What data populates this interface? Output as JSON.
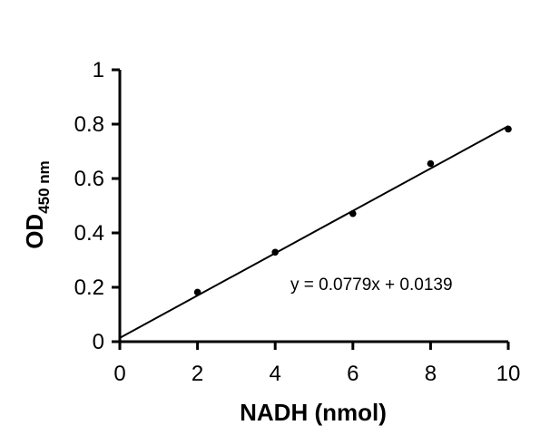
{
  "chart_data": {
    "type": "scatter",
    "x": [
      2,
      4,
      6,
      8,
      10
    ],
    "y": [
      0.182,
      0.329,
      0.471,
      0.655,
      0.782
    ],
    "xlim": [
      0,
      10
    ],
    "ylim": [
      0,
      1
    ],
    "xticks": [
      "0",
      "2",
      "4",
      "6",
      "8",
      "10"
    ],
    "yticks": [
      "0",
      "0.2",
      "0.4",
      "0.6",
      "0.8",
      "1"
    ],
    "xlabel": "NADH (nmol)",
    "ylabel_main": "OD",
    "ylabel_subscript": "450 nm",
    "grid": false,
    "trendline": {
      "type": "linear",
      "slope": 0.0779,
      "intercept": 0.0139,
      "equation": "y = 0.0779x + 0.0139"
    },
    "colors": {
      "axis": "#000000",
      "marker": "#000000",
      "trendline": "#000000"
    }
  }
}
